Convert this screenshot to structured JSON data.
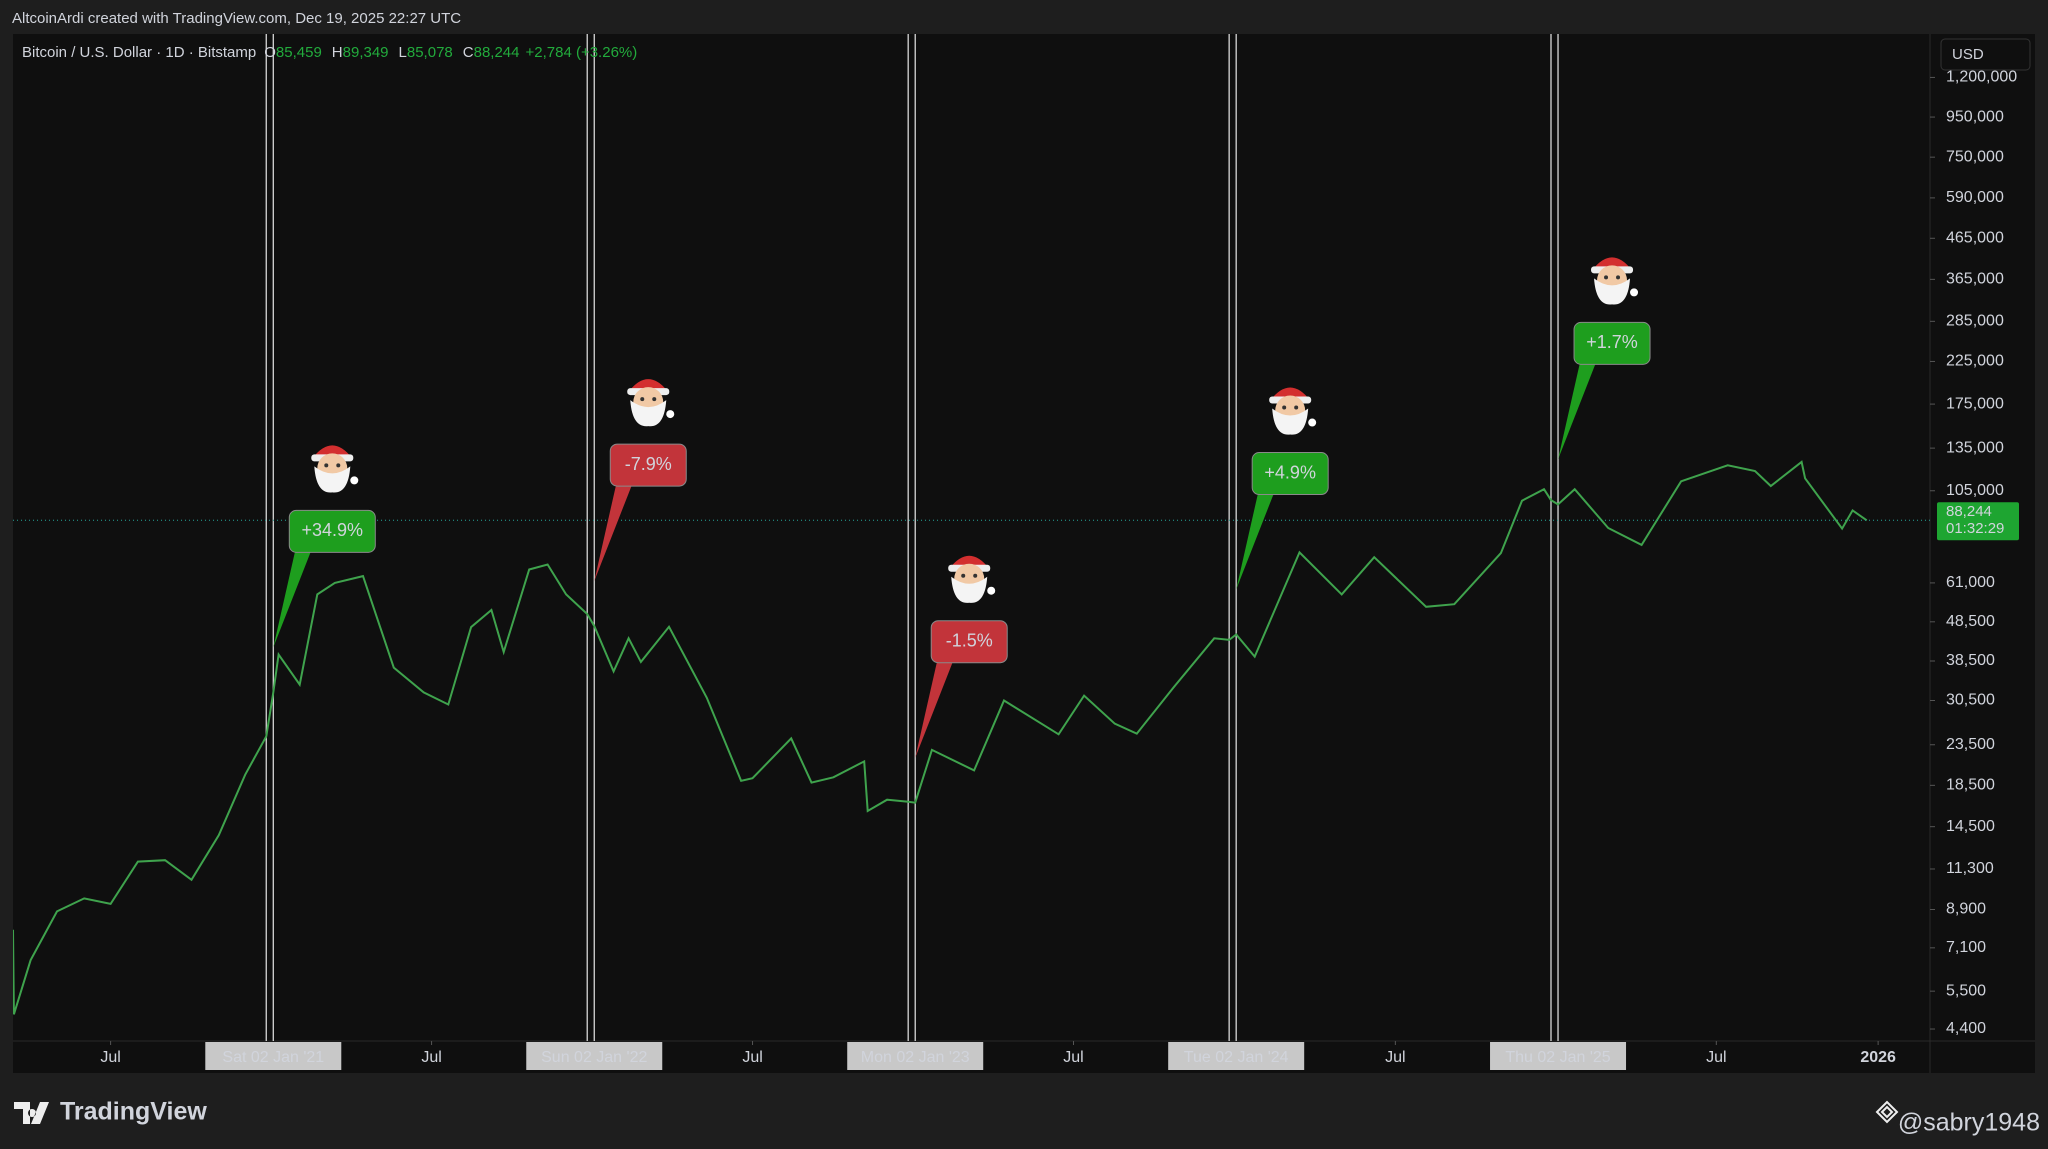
{
  "header": {
    "credit": "AltcoinArdi created with TradingView.com, Dec 19, 2025 22:27 UTC"
  },
  "footer": {
    "brand": "TradingView",
    "author": "@sabry1948"
  },
  "chart_data": {
    "type": "line",
    "symbol": "Bitcoin / U.S. Dollar · 1D · Bitstamp",
    "ohlc": [
      {
        "key": "O",
        "value": 85459,
        "label": "85,459"
      },
      {
        "key": "H",
        "value": 89349,
        "label": "89,349"
      },
      {
        "key": "L",
        "value": 85078,
        "label": "85,078"
      },
      {
        "key": "C",
        "value": 88244,
        "label": "88,244"
      }
    ],
    "change": "+2,784 (+3.26%)",
    "currency": "USD",
    "last_price": {
      "value": 88244,
      "label": "88,244"
    },
    "countdown": "01:32:29",
    "log_scale": true,
    "color": "#3fa34d",
    "x": [
      "2020-03-12",
      "2020-03-13",
      "2020-04-01",
      "2020-05-01",
      "2020-06-01",
      "2020-07-01",
      "2020-08-01",
      "2020-09-01",
      "2020-10-01",
      "2020-11-01",
      "2020-12-01",
      "2020-12-25",
      "2021-01-02",
      "2021-01-08",
      "2021-02-01",
      "2021-02-21",
      "2021-03-13",
      "2021-04-14",
      "2021-05-19",
      "2021-06-22",
      "2021-07-20",
      "2021-08-15",
      "2021-09-07",
      "2021-09-21",
      "2021-10-20",
      "2021-11-10",
      "2021-12-01",
      "2021-12-25",
      "2022-01-02",
      "2022-01-24",
      "2022-02-10",
      "2022-02-24",
      "2022-03-28",
      "2022-05-10",
      "2022-06-18",
      "2022-07-01",
      "2022-08-14",
      "2022-09-06",
      "2022-10-01",
      "2022-11-05",
      "2022-11-09",
      "2022-12-01",
      "2022-12-25",
      "2023-01-02",
      "2023-01-21",
      "2023-03-10",
      "2023-04-13",
      "2023-06-14",
      "2023-07-13",
      "2023-08-17",
      "2023-09-11",
      "2023-10-23",
      "2023-12-08",
      "2023-12-25",
      "2024-01-02",
      "2024-01-23",
      "2024-03-14",
      "2024-05-01",
      "2024-06-07",
      "2024-08-05",
      "2024-09-06",
      "2024-10-29",
      "2024-11-22",
      "2024-12-17",
      "2024-12-25",
      "2025-01-02",
      "2025-01-21",
      "2025-02-28",
      "2025-04-07",
      "2025-05-22",
      "2025-07-14",
      "2025-08-14",
      "2025-09-01",
      "2025-10-06",
      "2025-10-10",
      "2025-11-21",
      "2025-12-03",
      "2025-12-19"
    ],
    "values": [
      7900,
      4800,
      6600,
      8800,
      9500,
      9200,
      11800,
      11900,
      10600,
      13800,
      19700,
      24700,
      32000,
      40000,
      33500,
      57000,
      61000,
      63500,
      37000,
      32000,
      29800,
      47000,
      52000,
      40600,
      66000,
      68000,
      57000,
      50800,
      47300,
      36200,
      44000,
      38300,
      47100,
      31000,
      19000,
      19300,
      24400,
      18800,
      19400,
      21300,
      15900,
      17000,
      16800,
      16700,
      22800,
      20200,
      30500,
      25000,
      31400,
      26600,
      25100,
      33000,
      44000,
      43600,
      45000,
      39500,
      73000,
      57000,
      71000,
      53000,
      53800,
      72700,
      99000,
      106000,
      99400,
      96900,
      106000,
      84300,
      76300,
      111000,
      122000,
      118000,
      108000,
      124500,
      113000,
      84000,
      93500,
      88244
    ],
    "xlim": [
      "2020-03-12",
      "2026-03-01"
    ],
    "xticks": [
      {
        "value": "2020-07-01",
        "label": "Jul"
      },
      {
        "value": "2021-01-02",
        "label": "Sat 02 Jan '21"
      },
      {
        "value": "2021-07-01",
        "label": "Jul"
      },
      {
        "value": "2022-01-02",
        "label": "Sun 02 Jan '22"
      },
      {
        "value": "2022-07-01",
        "label": "Jul"
      },
      {
        "value": "2023-01-02",
        "label": "Mon 02 Jan '23"
      },
      {
        "value": "2023-07-01",
        "label": "Jul"
      },
      {
        "value": "2024-01-02",
        "label": "Tue 02 Jan '24"
      },
      {
        "value": "2024-07-01",
        "label": "Jul"
      },
      {
        "value": "2025-01-02",
        "label": "Thu 02 Jan '25"
      },
      {
        "value": "2025-07-01",
        "label": "Jul"
      },
      {
        "value": "2026-01-01",
        "label": "2026"
      }
    ],
    "ylim": [
      4100,
      1550000
    ],
    "yticks": [
      {
        "value": 1200000,
        "label": "1,200,000"
      },
      {
        "value": 950000,
        "label": "950,000"
      },
      {
        "value": 750000,
        "label": "750,000"
      },
      {
        "value": 590000,
        "label": "590,000"
      },
      {
        "value": 465000,
        "label": "465,000"
      },
      {
        "value": 365000,
        "label": "365,000"
      },
      {
        "value": 285000,
        "label": "285,000"
      },
      {
        "value": 225000,
        "label": "225,000"
      },
      {
        "value": 175000,
        "label": "175,000"
      },
      {
        "value": 135000,
        "label": "135,000"
      },
      {
        "value": 105000,
        "label": "105,000"
      },
      {
        "value": 61000,
        "label": "61,000"
      },
      {
        "value": 48500,
        "label": "48,500"
      },
      {
        "value": 38500,
        "label": "38,500"
      },
      {
        "value": 30500,
        "label": "30,500"
      },
      {
        "value": 23500,
        "label": "23,500"
      },
      {
        "value": 18500,
        "label": "18,500"
      },
      {
        "value": 14500,
        "label": "14,500"
      },
      {
        "value": 11300,
        "label": "11,300"
      },
      {
        "value": 8900,
        "label": "8,900"
      },
      {
        "value": 7100,
        "label": "7,100"
      },
      {
        "value": 5500,
        "label": "5,500"
      },
      {
        "value": 4400,
        "label": "4,400"
      }
    ],
    "vlines": [
      "2020-12-25",
      "2021-01-02",
      "2021-12-25",
      "2022-01-02",
      "2022-12-25",
      "2023-01-02",
      "2023-12-25",
      "2024-01-02",
      "2024-12-25",
      "2025-01-02"
    ],
    "annotations": [
      {
        "x": "2021-01-02",
        "value": 34.9,
        "label": "+34.9%",
        "color": "#1e9e1e"
      },
      {
        "x": "2022-01-02",
        "value": -7.9,
        "label": "-7.9%",
        "color": "#c2343a"
      },
      {
        "x": "2023-01-02",
        "value": -1.5,
        "label": "-1.5%",
        "color": "#c2343a"
      },
      {
        "x": "2024-01-02",
        "value": 4.9,
        "label": "+4.9%",
        "color": "#1e9e1e"
      },
      {
        "x": "2025-01-02",
        "value": 1.7,
        "label": "+1.7%",
        "color": "#1e9e1e"
      }
    ]
  }
}
